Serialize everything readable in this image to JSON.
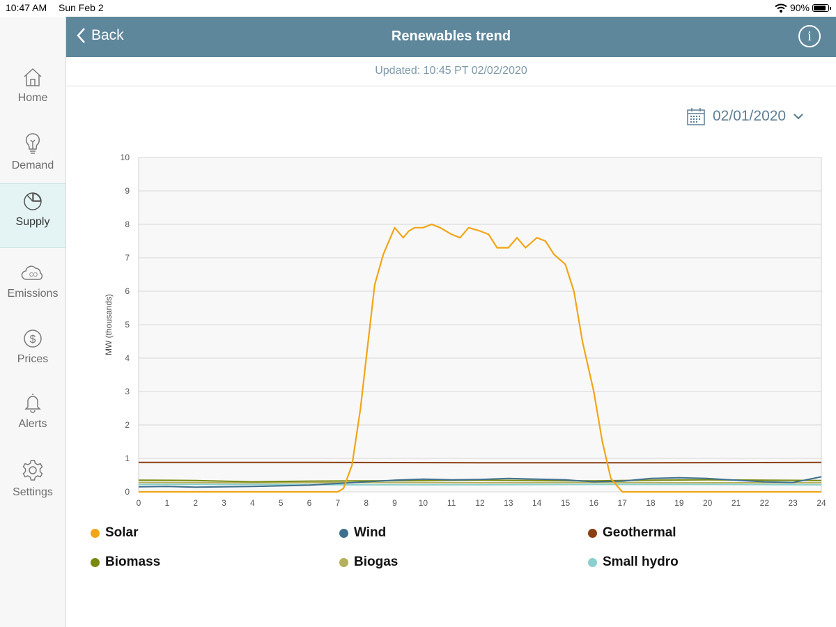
{
  "status_bar": {
    "time": "10:47 AM",
    "date": "Sun Feb 2",
    "battery": "90%",
    "battery_level": 0.9
  },
  "header": {
    "back_label": "Back",
    "title": "Renewables trend",
    "info_icon": "info-icon"
  },
  "updated_text": "Updated: 10:45 PT 02/02/2020",
  "date_picker": {
    "value": "02/01/2020"
  },
  "sidebar": {
    "items": [
      {
        "label": "Home",
        "icon": "home-icon",
        "active": false
      },
      {
        "label": "Demand",
        "icon": "lightbulb-icon",
        "active": false
      },
      {
        "label": "Supply",
        "icon": "pie-chart-icon",
        "active": true
      },
      {
        "label": "Emissions",
        "icon": "co2-cloud-icon",
        "active": false
      },
      {
        "label": "Prices",
        "icon": "dollar-icon",
        "active": false
      },
      {
        "label": "Alerts",
        "icon": "bell-icon",
        "active": false
      },
      {
        "label": "Settings",
        "icon": "gear-icon",
        "active": false
      }
    ]
  },
  "chart_data": {
    "type": "line",
    "ylabel": "MW (thousands)",
    "xlim": [
      0,
      24
    ],
    "ylim": [
      0,
      10
    ],
    "xticks": [
      0,
      1,
      2,
      3,
      4,
      5,
      6,
      7,
      8,
      9,
      10,
      11,
      12,
      13,
      14,
      15,
      16,
      17,
      18,
      19,
      20,
      21,
      22,
      23,
      24
    ],
    "yticks": [
      0,
      1,
      2,
      3,
      4,
      5,
      6,
      7,
      8,
      9,
      10
    ],
    "grid": true,
    "legend_position": "bottom",
    "series": [
      {
        "name": "Solar",
        "color": "#f2a516",
        "x": [
          0,
          6.5,
          7,
          7.2,
          7.5,
          7.8,
          8,
          8.3,
          8.6,
          9,
          9.3,
          9.5,
          9.7,
          10,
          10.3,
          10.6,
          11,
          11.3,
          11.6,
          12,
          12.3,
          12.6,
          13,
          13.3,
          13.6,
          14,
          14.3,
          14.6,
          15,
          15.3,
          15.6,
          16,
          16.3,
          16.6,
          17,
          17.3,
          17.5,
          24
        ],
        "y": [
          0,
          0,
          0,
          0.1,
          0.8,
          2.5,
          4.0,
          6.2,
          7.1,
          7.9,
          7.6,
          7.8,
          7.9,
          7.9,
          8.0,
          7.9,
          7.7,
          7.6,
          7.9,
          7.8,
          7.7,
          7.3,
          7.3,
          7.6,
          7.3,
          7.6,
          7.5,
          7.1,
          6.8,
          6.0,
          4.5,
          3.0,
          1.5,
          0.4,
          0,
          0,
          0,
          0
        ]
      },
      {
        "name": "Wind",
        "color": "#3e6f8e",
        "x": [
          0,
          1,
          2,
          3,
          4,
          5,
          6,
          7,
          8,
          9,
          10,
          11,
          12,
          13,
          14,
          15,
          16,
          17,
          18,
          19,
          20,
          21,
          22,
          23,
          24
        ],
        "y": [
          0.15,
          0.16,
          0.14,
          0.15,
          0.16,
          0.18,
          0.2,
          0.25,
          0.3,
          0.35,
          0.38,
          0.36,
          0.37,
          0.4,
          0.38,
          0.36,
          0.3,
          0.32,
          0.4,
          0.42,
          0.4,
          0.35,
          0.3,
          0.28,
          0.45
        ]
      },
      {
        "name": "Geothermal",
        "color": "#8a3f12",
        "x": [
          0,
          6,
          12,
          18,
          24
        ],
        "y": [
          0.88,
          0.88,
          0.87,
          0.87,
          0.88
        ]
      },
      {
        "name": "Biomass",
        "color": "#7a8a10",
        "x": [
          0,
          2,
          4,
          6,
          8,
          10,
          12,
          14,
          16,
          18,
          20,
          22,
          24
        ],
        "y": [
          0.35,
          0.34,
          0.3,
          0.32,
          0.33,
          0.34,
          0.35,
          0.34,
          0.33,
          0.35,
          0.36,
          0.35,
          0.34
        ]
      },
      {
        "name": "Biogas",
        "color": "#b5b05e",
        "x": [
          0,
          4,
          8,
          12,
          16,
          20,
          24
        ],
        "y": [
          0.28,
          0.27,
          0.28,
          0.27,
          0.28,
          0.27,
          0.27
        ]
      },
      {
        "name": "Small hydro",
        "color": "#8ad0cf",
        "x": [
          0,
          4,
          8,
          12,
          16,
          20,
          24
        ],
        "y": [
          0.22,
          0.22,
          0.21,
          0.21,
          0.22,
          0.22,
          0.21
        ]
      }
    ]
  }
}
